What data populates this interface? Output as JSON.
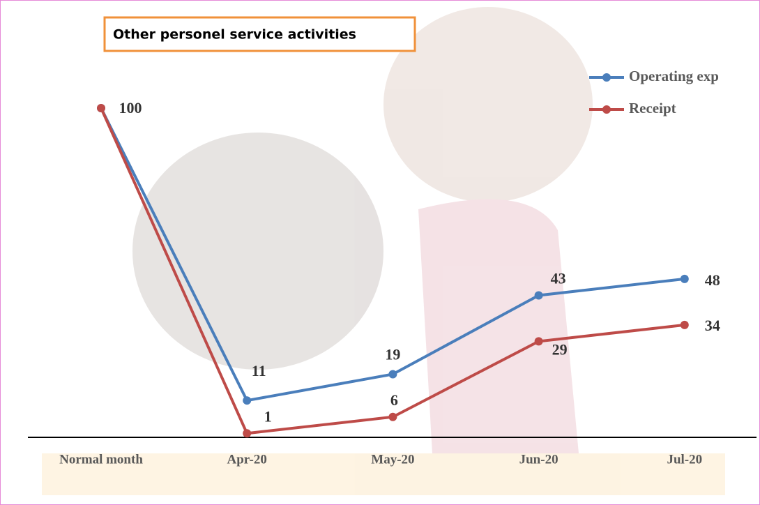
{
  "chart_data": {
    "type": "line",
    "title": "Other personel service activities",
    "categories": [
      "Normal month",
      "Apr-20",
      "May-20",
      "Jun-20",
      "Jul-20"
    ],
    "series": [
      {
        "name": "Operating exp",
        "color": "#4a7ebb",
        "values": [
          100,
          11,
          19,
          43,
          48
        ]
      },
      {
        "name": "Receipt",
        "color": "#be4b48",
        "values": [
          100,
          1,
          6,
          29,
          34
        ]
      }
    ],
    "ylim": [
      0,
      100
    ]
  }
}
